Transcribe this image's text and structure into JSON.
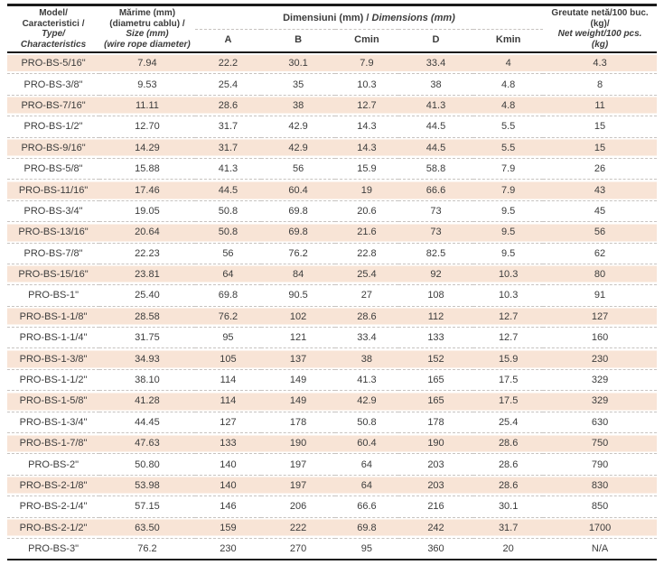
{
  "colors": {
    "row_shade": "#f8e4d6",
    "text": "#3c3c3c",
    "rule_dark": "#1b1b1b",
    "dashed_separator": "#c7c3c0"
  },
  "table": {
    "header": {
      "model": {
        "line1": "Model/",
        "line2": "Caracteristici /",
        "line3": "Type/",
        "line4": "Characteristics"
      },
      "size": {
        "line1": "Mărime (mm)",
        "line2": "(diametru cablu) /",
        "line3": "Size (mm)",
        "line4": "(wire rope diameter)"
      },
      "dimensions_group": {
        "ro": "Dimensiuni (mm) / ",
        "en": "Dimensions (mm)"
      },
      "sub_columns": [
        "A",
        "B",
        "Cmin",
        "D",
        "Kmin"
      ],
      "weight": {
        "line1": "Greutate netă/100 buc.",
        "line2": "(kg)/",
        "line3": "Net weight/100 pcs.",
        "line4": "(kg)"
      }
    },
    "rows": [
      [
        "PRO-BS-5/16\"",
        "7.94",
        "22.2",
        "30.1",
        "7.9",
        "33.4",
        "4",
        "4.3"
      ],
      [
        "PRO-BS-3/8\"",
        "9.53",
        "25.4",
        "35",
        "10.3",
        "38",
        "4.8",
        "8"
      ],
      [
        "PRO-BS-7/16\"",
        "11.11",
        "28.6",
        "38",
        "12.7",
        "41.3",
        "4.8",
        "11"
      ],
      [
        "PRO-BS-1/2\"",
        "12.70",
        "31.7",
        "42.9",
        "14.3",
        "44.5",
        "5.5",
        "15"
      ],
      [
        "PRO-BS-9/16\"",
        "14.29",
        "31.7",
        "42.9",
        "14.3",
        "44.5",
        "5.5",
        "15"
      ],
      [
        "PRO-BS-5/8\"",
        "15.88",
        "41.3",
        "56",
        "15.9",
        "58.8",
        "7.9",
        "26"
      ],
      [
        "PRO-BS-11/16\"",
        "17.46",
        "44.5",
        "60.4",
        "19",
        "66.6",
        "7.9",
        "43"
      ],
      [
        "PRO-BS-3/4\"",
        "19.05",
        "50.8",
        "69.8",
        "20.6",
        "73",
        "9.5",
        "45"
      ],
      [
        "PRO-BS-13/16\"",
        "20.64",
        "50.8",
        "69.8",
        "21.6",
        "73",
        "9.5",
        "56"
      ],
      [
        "PRO-BS-7/8\"",
        "22.23",
        "56",
        "76.2",
        "22.8",
        "82.5",
        "9.5",
        "62"
      ],
      [
        "PRO-BS-15/16\"",
        "23.81",
        "64",
        "84",
        "25.4",
        "92",
        "10.3",
        "80"
      ],
      [
        "PRO-BS-1\"",
        "25.40",
        "69.8",
        "90.5",
        "27",
        "108",
        "10.3",
        "91"
      ],
      [
        "PRO-BS-1-1/8\"",
        "28.58",
        "76.2",
        "102",
        "28.6",
        "112",
        "12.7",
        "127"
      ],
      [
        "PRO-BS-1-1/4\"",
        "31.75",
        "95",
        "121",
        "33.4",
        "133",
        "12.7",
        "160"
      ],
      [
        "PRO-BS-1-3/8\"",
        "34.93",
        "105",
        "137",
        "38",
        "152",
        "15.9",
        "230"
      ],
      [
        "PRO-BS-1-1/2\"",
        "38.10",
        "114",
        "149",
        "41.3",
        "165",
        "17.5",
        "329"
      ],
      [
        "PRO-BS-1-5/8\"",
        "41.28",
        "114",
        "149",
        "42.9",
        "165",
        "17.5",
        "329"
      ],
      [
        "PRO-BS-1-3/4\"",
        "44.45",
        "127",
        "178",
        "50.8",
        "178",
        "25.4",
        "630"
      ],
      [
        "PRO-BS-1-7/8\"",
        "47.63",
        "133",
        "190",
        "60.4",
        "190",
        "28.6",
        "750"
      ],
      [
        "PRO-BS-2\"",
        "50.80",
        "140",
        "197",
        "64",
        "203",
        "28.6",
        "790"
      ],
      [
        "PRO-BS-2-1/8\"",
        "53.98",
        "140",
        "197",
        "64",
        "203",
        "28.6",
        "830"
      ],
      [
        "PRO-BS-2-1/4\"",
        "57.15",
        "146",
        "206",
        "66.6",
        "216",
        "30.1",
        "850"
      ],
      [
        "PRO-BS-2-1/2\"",
        "63.50",
        "159",
        "222",
        "69.8",
        "242",
        "31.7",
        "1700"
      ],
      [
        "PRO-BS-3\"",
        "76.2",
        "230",
        "270",
        "95",
        "360",
        "20",
        "N/A"
      ]
    ]
  }
}
